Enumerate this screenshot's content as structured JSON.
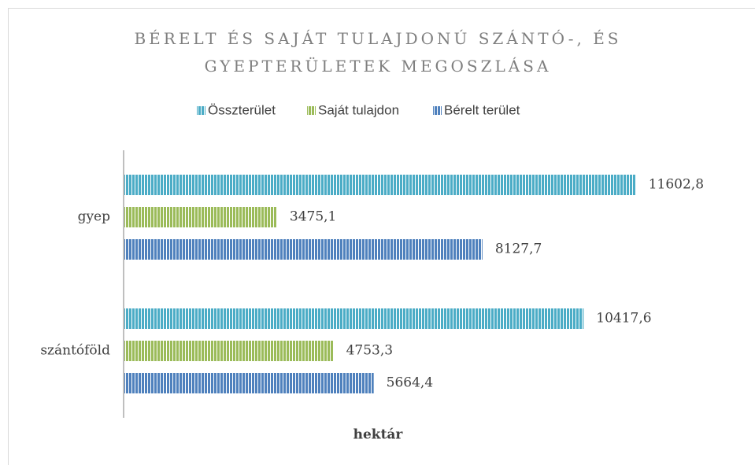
{
  "chart_data": {
    "type": "hbar",
    "title": "BÉRELT ÉS SAJÁT TULAJDONÚ SZÁNTÓ-, ÉS GYEPTERÜLETEK MEGOSZLÁSA",
    "x_label": "hektár",
    "categories": [
      "gyep",
      "szántóföld"
    ],
    "series": [
      {
        "name": "Összterület",
        "color": "#4bacc6",
        "values": [
          11602.8,
          10417.6
        ],
        "value_labels": [
          "11602,8",
          "10417,6"
        ]
      },
      {
        "name": "Saját tulajdon",
        "color": "#9bbb59",
        "values": [
          3475.1,
          4753.3
        ],
        "value_labels": [
          "3475,1",
          "4753,3"
        ]
      },
      {
        "name": "Bérelt terület",
        "color": "#4f81bd",
        "values": [
          8127.7,
          5664.4
        ],
        "value_labels": [
          "8127,7",
          "5664,4"
        ]
      }
    ],
    "xlim": [
      0,
      12000
    ],
    "legend": "top"
  }
}
